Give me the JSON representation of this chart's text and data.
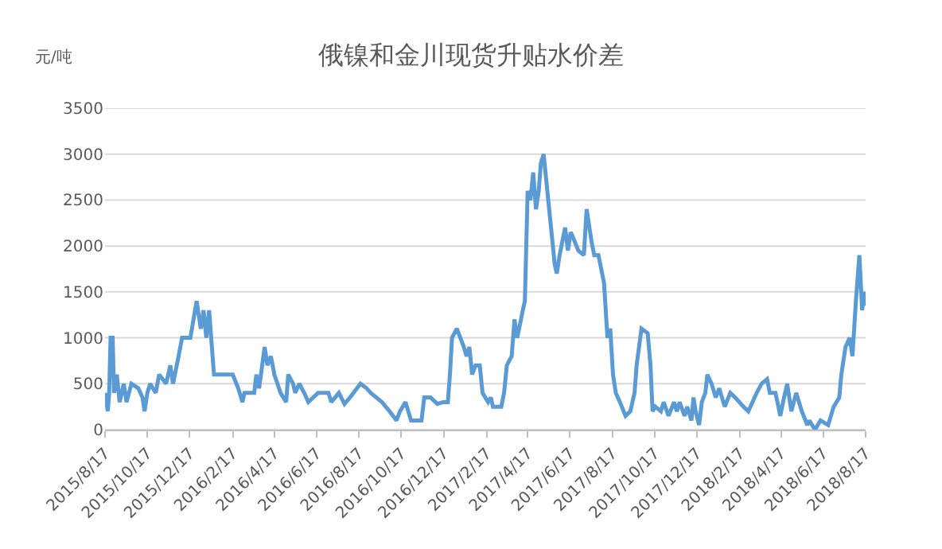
{
  "chart_data": {
    "type": "line",
    "title": "俄镍和金川现货升贴水价差",
    "ylabel": "元/吨",
    "grid": "y",
    "marker": "none",
    "line_style": "solid",
    "xlim": [
      "2015-08-17",
      "2018-08-17"
    ],
    "xticks": [
      {
        "value": "2015-08-17",
        "label": "2015/8/17"
      },
      {
        "value": "2015-10-17",
        "label": "2015/10/17"
      },
      {
        "value": "2015-12-17",
        "label": "2015/12/17"
      },
      {
        "value": "2016-02-17",
        "label": "2016/2/17"
      },
      {
        "value": "2016-04-17",
        "label": "2016/4/17"
      },
      {
        "value": "2016-06-17",
        "label": "2016/6/17"
      },
      {
        "value": "2016-08-17",
        "label": "2016/8/17"
      },
      {
        "value": "2016-10-17",
        "label": "2016/10/17"
      },
      {
        "value": "2016-12-17",
        "label": "2016/12/17"
      },
      {
        "value": "2017-02-17",
        "label": "2017/2/17"
      },
      {
        "value": "2017-04-17",
        "label": "2017/4/17"
      },
      {
        "value": "2017-06-17",
        "label": "2017/6/17"
      },
      {
        "value": "2017-08-17",
        "label": "2017/8/17"
      },
      {
        "value": "2017-10-17",
        "label": "2017/10/17"
      },
      {
        "value": "2017-12-17",
        "label": "2017/12/17"
      },
      {
        "value": "2018-02-17",
        "label": "2018/2/17"
      },
      {
        "value": "2018-04-17",
        "label": "2018/4/17"
      },
      {
        "value": "2018-06-17",
        "label": "2018/6/17"
      },
      {
        "value": "2018-08-17",
        "label": "2018/8/17"
      }
    ],
    "ylim": [
      0,
      3500
    ],
    "yticks": [
      0,
      500,
      1000,
      1500,
      2000,
      2500,
      3000,
      3500
    ],
    "x": [
      "2015-08-17",
      "2015-08-21",
      "2015-08-23",
      "2015-08-25",
      "2015-08-28",
      "2015-08-30",
      "2015-09-03",
      "2015-09-07",
      "2015-09-13",
      "2015-09-17",
      "2015-09-24",
      "2015-10-04",
      "2015-10-10",
      "2015-10-13",
      "2015-10-17",
      "2015-10-21",
      "2015-10-29",
      "2015-11-03",
      "2015-11-13",
      "2015-11-19",
      "2015-11-23",
      "2015-12-01",
      "2015-12-06",
      "2015-12-18",
      "2015-12-27",
      "2016-01-02",
      "2016-01-06",
      "2016-01-10",
      "2016-01-14",
      "2016-01-17",
      "2016-01-21",
      "2016-01-25",
      "2016-02-17",
      "2016-02-25",
      "2016-03-02",
      "2016-03-05",
      "2016-03-19",
      "2016-03-22",
      "2016-03-26",
      "2016-04-03",
      "2016-04-07",
      "2016-04-12",
      "2016-04-17",
      "2016-04-26",
      "2016-05-04",
      "2016-05-07",
      "2016-05-14",
      "2016-05-17",
      "2016-05-23",
      "2016-05-30",
      "2016-06-05",
      "2016-06-19",
      "2016-07-04",
      "2016-07-08",
      "2016-07-19",
      "2016-07-27",
      "2016-08-04",
      "2016-08-19",
      "2016-08-28",
      "2016-09-03",
      "2016-09-19",
      "2016-09-30",
      "2016-10-10",
      "2016-10-15",
      "2016-10-23",
      "2016-10-31",
      "2016-11-15",
      "2016-11-19",
      "2016-11-28",
      "2016-12-08",
      "2016-12-16",
      "2016-12-23",
      "2016-12-26",
      "2016-12-29",
      "2017-01-05",
      "2017-01-15",
      "2017-01-19",
      "2017-01-23",
      "2017-01-27",
      "2017-02-01",
      "2017-02-07",
      "2017-02-11",
      "2017-02-19",
      "2017-02-23",
      "2017-02-26",
      "2017-03-10",
      "2017-03-14",
      "2017-03-18",
      "2017-03-25",
      "2017-03-29",
      "2017-04-02",
      "2017-04-10",
      "2017-04-13",
      "2017-04-17",
      "2017-04-21",
      "2017-04-25",
      "2017-04-29",
      "2017-05-03",
      "2017-05-06",
      "2017-05-10",
      "2017-05-14",
      "2017-05-22",
      "2017-05-26",
      "2017-05-29",
      "2017-06-02",
      "2017-06-10",
      "2017-06-14",
      "2017-06-18",
      "2017-06-21",
      "2017-06-29",
      "2017-07-07",
      "2017-07-11",
      "2017-07-18",
      "2017-07-22",
      "2017-07-28",
      "2017-08-05",
      "2017-08-10",
      "2017-08-14",
      "2017-08-18",
      "2017-08-22",
      "2017-08-28",
      "2017-09-05",
      "2017-09-12",
      "2017-09-18",
      "2017-09-21",
      "2017-09-28",
      "2017-10-07",
      "2017-10-11",
      "2017-10-14",
      "2017-10-18",
      "2017-10-26",
      "2017-10-30",
      "2017-11-06",
      "2017-11-14",
      "2017-11-18",
      "2017-11-22",
      "2017-11-29",
      "2017-12-03",
      "2017-12-09",
      "2017-12-12",
      "2017-12-15",
      "2017-12-20",
      "2017-12-24",
      "2017-12-29",
      "2018-01-01",
      "2018-01-07",
      "2018-01-13",
      "2018-01-18",
      "2018-01-26",
      "2018-02-03",
      "2018-02-10",
      "2018-02-22",
      "2018-03-01",
      "2018-03-07",
      "2018-03-13",
      "2018-03-20",
      "2018-03-28",
      "2018-04-01",
      "2018-04-09",
      "2018-04-12",
      "2018-04-16",
      "2018-04-20",
      "2018-04-26",
      "2018-05-02",
      "2018-05-09",
      "2018-05-17",
      "2018-05-25",
      "2018-05-28",
      "2018-06-05",
      "2018-06-13",
      "2018-06-24",
      "2018-07-02",
      "2018-07-10",
      "2018-07-13",
      "2018-07-19",
      "2018-07-25",
      "2018-07-29",
      "2018-08-03",
      "2018-08-08",
      "2018-08-12",
      "2018-08-15",
      "2018-08-17"
    ],
    "series": [
      {
        "color": "#5b9bd5",
        "values": [
          400,
          200,
          400,
          1000,
          1000,
          400,
          600,
          300,
          500,
          300,
          500,
          450,
          350,
          200,
          400,
          500,
          400,
          600,
          500,
          700,
          500,
          800,
          1000,
          1000,
          1400,
          1100,
          1300,
          1000,
          1300,
          1000,
          600,
          600,
          600,
          450,
          300,
          400,
          400,
          600,
          450,
          900,
          700,
          800,
          600,
          400,
          300,
          600,
          500,
          400,
          500,
          400,
          300,
          400,
          400,
          300,
          400,
          280,
          350,
          500,
          450,
          400,
          300,
          200,
          100,
          200,
          300,
          100,
          100,
          350,
          350,
          280,
          300,
          300,
          600,
          1000,
          1100,
          900,
          800,
          900,
          600,
          700,
          700,
          400,
          300,
          350,
          250,
          250,
          400,
          700,
          800,
          1200,
          1000,
          1300,
          1400,
          2600,
          2500,
          2800,
          2400,
          2600,
          2900,
          3000,
          2700,
          2100,
          1800,
          1700,
          1900,
          2200,
          1950,
          2150,
          2100,
          1950,
          1900,
          2400,
          2050,
          1900,
          1900,
          1600,
          1000,
          1100,
          600,
          400,
          300,
          150,
          200,
          400,
          700,
          1100,
          1050,
          700,
          200,
          250,
          200,
          300,
          150,
          300,
          200,
          300,
          150,
          250,
          100,
          350,
          200,
          50,
          300,
          400,
          600,
          500,
          350,
          450,
          250,
          400,
          350,
          250,
          200,
          300,
          400,
          500,
          550,
          400,
          400,
          300,
          150,
          300,
          500,
          200,
          400,
          200,
          50,
          100,
          0,
          100,
          50,
          250,
          350,
          600,
          900,
          1000,
          800,
          1400,
          1900,
          1300,
          1500,
          1350
        ]
      }
    ]
  }
}
